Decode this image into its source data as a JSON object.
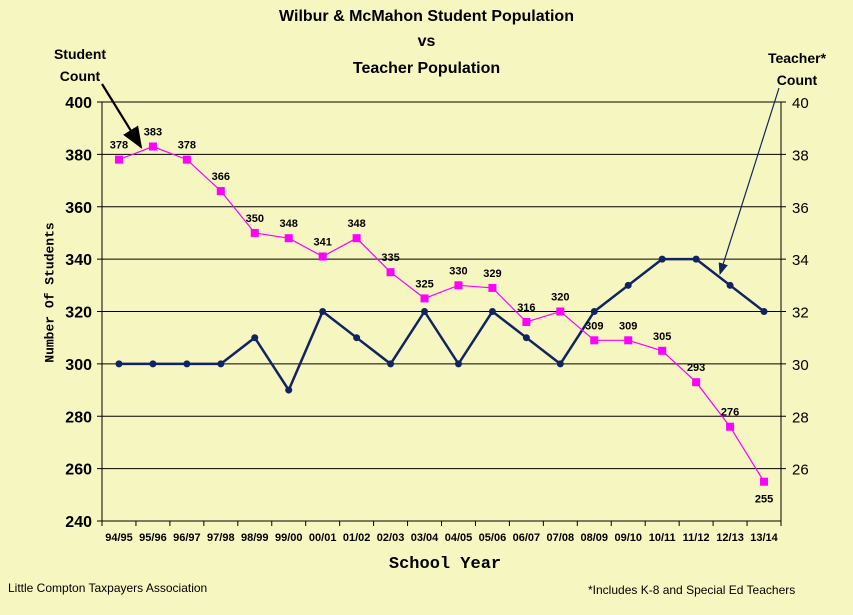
{
  "title_lines": [
    "Wilbur & McMahon Student Population",
    "vs",
    "Teacher Population"
  ],
  "annotations": {
    "student": [
      "Student",
      "Count"
    ],
    "teacher": [
      "Teacher*",
      "Count"
    ]
  },
  "footer": {
    "left": "Little Compton Taxpayers Association",
    "right": "*Includes K-8 and Special Ed Teachers"
  },
  "colors": {
    "student": "#ff00ff",
    "teacher": "#0f2461",
    "background": "#f6f6c0"
  },
  "chart_data": {
    "type": "line",
    "title": "Wilbur & McMahon Student Population vs Teacher Population",
    "xlabel": "School Year",
    "ylabel": "Number Of Students",
    "ylim": [
      240,
      400
    ],
    "y2lim": [
      24,
      40
    ],
    "yticks": [
      240,
      260,
      280,
      300,
      320,
      340,
      360,
      380,
      400
    ],
    "y2ticks": [
      26,
      28,
      30,
      32,
      34,
      36,
      38,
      40
    ],
    "grid": true,
    "categories": [
      "94/95",
      "95/96",
      "96/97",
      "97/98",
      "98/99",
      "99/00",
      "00/01",
      "01/02",
      "02/03",
      "03/04",
      "04/05",
      "05/06",
      "06/07",
      "07/08",
      "08/09",
      "09/10",
      "10/11",
      "11/12",
      "12/13",
      "13/14"
    ],
    "series": [
      {
        "name": "Student Count",
        "axis": "left",
        "values": [
          378,
          383,
          378,
          366,
          350,
          348,
          341,
          348,
          335,
          325,
          330,
          329,
          316,
          320,
          309,
          309,
          305,
          293,
          276,
          255
        ],
        "data_labels": true
      },
      {
        "name": "Teacher* Count",
        "axis": "right",
        "values": [
          30,
          30,
          30,
          30,
          31,
          29,
          32,
          31,
          30,
          32,
          30,
          32,
          31,
          30,
          32,
          33,
          34,
          34,
          33,
          32
        ],
        "data_labels": false
      }
    ]
  }
}
